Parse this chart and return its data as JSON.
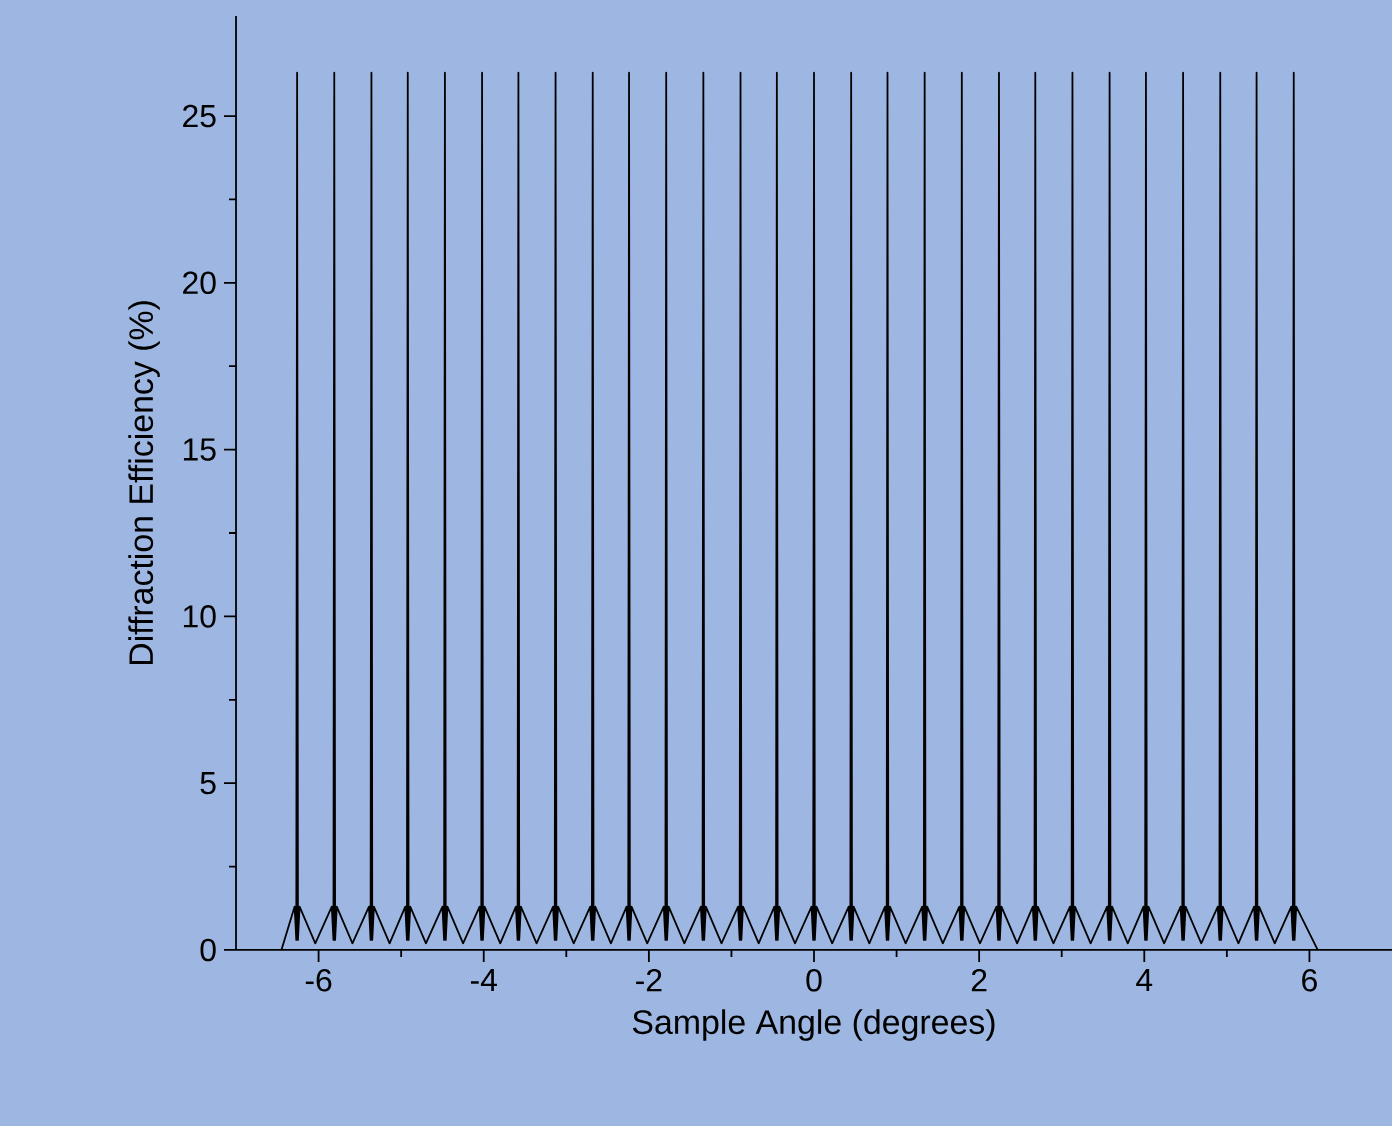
{
  "chart_data": {
    "type": "line",
    "xlabel": "Sample Angle (degrees)",
    "ylabel": "Diffraction Efficiency (%)",
    "xlim": [
      -7,
      7
    ],
    "ylim": [
      0,
      28
    ],
    "xticks": [
      -6,
      -4,
      -2,
      0,
      2,
      4,
      6
    ],
    "yticks": [
      0,
      5,
      10,
      15,
      20,
      25
    ],
    "grid": false,
    "marker": "none",
    "line_style": "solid",
    "series": [
      {
        "color": "#000000",
        "x": [
          -6.45,
          -6.29,
          -6.27,
          -6.26,
          -6.25,
          -6.23,
          -6.04,
          -5.84,
          -5.82,
          -5.81,
          -5.8,
          -5.78,
          -5.59,
          -5.39,
          -5.37,
          -5.36,
          -5.35,
          -5.33,
          -5.14,
          -4.95,
          -4.93,
          -4.92,
          -4.91,
          -4.89,
          -4.7,
          -4.5,
          -4.48,
          -4.47,
          -4.46,
          -4.44,
          -4.25,
          -4.05,
          -4.03,
          -4.02,
          -4.01,
          -3.99,
          -3.8,
          -3.61,
          -3.59,
          -3.58,
          -3.57,
          -3.55,
          -3.36,
          -3.16,
          -3.14,
          -3.13,
          -3.12,
          -3.1,
          -2.91,
          -2.71,
          -2.69,
          -2.68,
          -2.67,
          -2.65,
          -2.46,
          -2.27,
          -2.25,
          -2.24,
          -2.23,
          -2.21,
          -2.02,
          -1.82,
          -1.8,
          -1.79,
          -1.78,
          -1.76,
          -1.57,
          -1.37,
          -1.35,
          -1.34,
          -1.33,
          -1.31,
          -1.12,
          -0.92,
          -0.9,
          -0.89,
          -0.88,
          -0.86,
          -0.67,
          -0.48,
          -0.46,
          -0.45,
          -0.44,
          -0.42,
          -0.23,
          -0.03,
          -0.01,
          0,
          0.01,
          0.03,
          0.22,
          0.42,
          0.44,
          0.45,
          0.46,
          0.48,
          0.67,
          0.86,
          0.88,
          0.89,
          0.9,
          0.92,
          1.11,
          1.31,
          1.33,
          1.34,
          1.35,
          1.37,
          1.56,
          1.76,
          1.78,
          1.79,
          1.8,
          1.82,
          2.01,
          2.21,
          2.23,
          2.24,
          2.25,
          2.27,
          2.46,
          2.65,
          2.67,
          2.68,
          2.69,
          2.71,
          2.9,
          3.1,
          3.12,
          3.13,
          3.14,
          3.16,
          3.35,
          3.55,
          3.57,
          3.58,
          3.59,
          3.61,
          3.8,
          3.99,
          4.01,
          4.02,
          4.03,
          4.05,
          4.24,
          4.44,
          4.46,
          4.47,
          4.48,
          4.5,
          4.69,
          4.89,
          4.91,
          4.92,
          4.93,
          4.95,
          5.14,
          5.33,
          5.35,
          5.36,
          5.37,
          5.39,
          5.58,
          5.78,
          5.8,
          5.81,
          5.82,
          5.84,
          6.1
        ],
        "values": [
          0,
          1.3,
          0.3,
          26.3,
          0.3,
          1.3,
          0.2,
          1.3,
          0.3,
          26.3,
          0.3,
          1.3,
          0.2,
          1.3,
          0.3,
          26.3,
          0.3,
          1.3,
          0.2,
          1.3,
          0.3,
          26.3,
          0.3,
          1.3,
          0.2,
          1.3,
          0.3,
          26.3,
          0.3,
          1.3,
          0.2,
          1.3,
          0.3,
          26.3,
          0.3,
          1.3,
          0.2,
          1.3,
          0.3,
          26.3,
          0.3,
          1.3,
          0.2,
          1.3,
          0.3,
          26.3,
          0.3,
          1.3,
          0.2,
          1.3,
          0.3,
          26.3,
          0.3,
          1.3,
          0.2,
          1.3,
          0.3,
          26.3,
          0.3,
          1.3,
          0.2,
          1.3,
          0.3,
          26.3,
          0.3,
          1.3,
          0.2,
          1.3,
          0.3,
          26.3,
          0.3,
          1.3,
          0.2,
          1.3,
          0.3,
          26.3,
          0.3,
          1.3,
          0.2,
          1.3,
          0.3,
          26.3,
          0.3,
          1.3,
          0.2,
          1.3,
          0.3,
          26.3,
          0.3,
          1.3,
          0.2,
          1.3,
          0.3,
          26.3,
          0.3,
          1.3,
          0.2,
          1.3,
          0.3,
          26.3,
          0.3,
          1.3,
          0.2,
          1.3,
          0.3,
          26.3,
          0.3,
          1.3,
          0.2,
          1.3,
          0.3,
          26.3,
          0.3,
          1.3,
          0.2,
          1.3,
          0.3,
          26.3,
          0.3,
          1.3,
          0.2,
          1.3,
          0.3,
          26.3,
          0.3,
          1.3,
          0.2,
          1.3,
          0.3,
          26.3,
          0.3,
          1.3,
          0.2,
          1.3,
          0.3,
          26.3,
          0.3,
          1.3,
          0.2,
          1.3,
          0.3,
          26.3,
          0.3,
          1.3,
          0.2,
          1.3,
          0.3,
          26.3,
          0.3,
          1.3,
          0.2,
          1.3,
          0.3,
          26.3,
          0.3,
          1.3,
          0.2,
          1.3,
          0.3,
          26.3,
          0.3,
          1.3,
          0.2,
          1.3,
          0.3,
          26.3,
          0.3,
          1.3,
          0
        ]
      }
    ]
  }
}
